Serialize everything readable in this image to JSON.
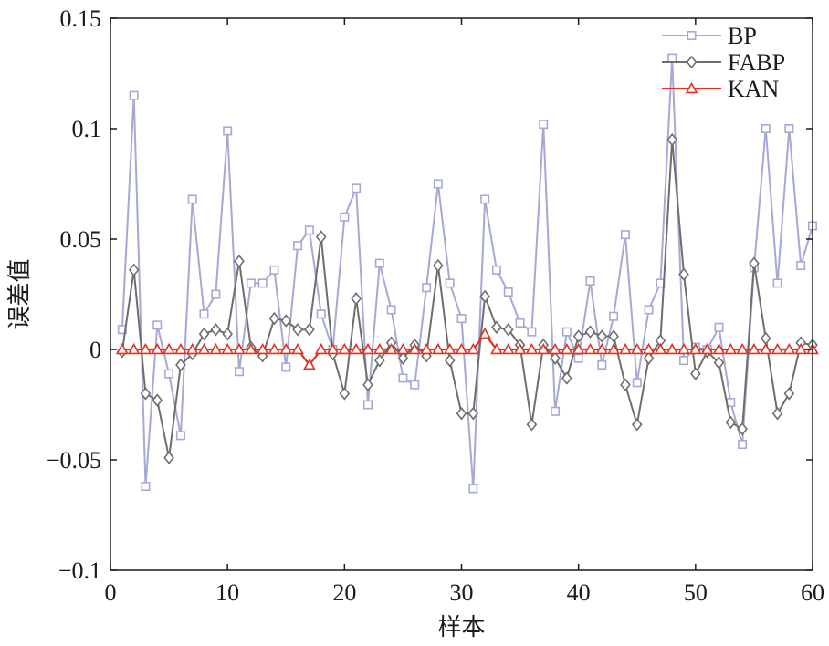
{
  "chart_data": {
    "type": "line",
    "xlabel": "样本",
    "ylabel": "误差值",
    "xlim": [
      0,
      60
    ],
    "ylim": [
      -0.1,
      0.15
    ],
    "x_ticks": [
      0,
      10,
      20,
      30,
      40,
      50,
      60
    ],
    "x_tick_labels": [
      "0",
      "10",
      "20",
      "30",
      "40",
      "50",
      "60"
    ],
    "y_ticks": [
      -0.1,
      -0.05,
      0,
      0.05,
      0.1,
      0.15
    ],
    "y_tick_labels": [
      "−0.1",
      "−0.05",
      "0",
      "0.05",
      "0.1",
      "0.15"
    ],
    "grid": false,
    "legend_position": "top-right",
    "x": [
      1,
      2,
      3,
      4,
      5,
      6,
      7,
      8,
      9,
      10,
      11,
      12,
      13,
      14,
      15,
      16,
      17,
      18,
      19,
      20,
      21,
      22,
      23,
      24,
      25,
      26,
      27,
      28,
      29,
      30,
      31,
      32,
      33,
      34,
      35,
      36,
      37,
      38,
      39,
      40,
      41,
      42,
      43,
      44,
      45,
      46,
      47,
      48,
      49,
      50,
      51,
      52,
      53,
      54,
      55,
      56,
      57,
      58,
      59,
      60
    ],
    "series": [
      {
        "name": "BP",
        "color": "#a6a8d6",
        "marker": "square",
        "values": [
          0.009,
          0.115,
          -0.062,
          0.011,
          -0.011,
          -0.039,
          0.068,
          0.016,
          0.025,
          0.099,
          -0.01,
          0.03,
          0.03,
          0.036,
          -0.008,
          0.047,
          0.054,
          0.016,
          0.0,
          0.06,
          0.073,
          -0.025,
          0.039,
          0.018,
          -0.013,
          -0.016,
          0.028,
          0.075,
          0.03,
          0.014,
          -0.063,
          0.068,
          0.036,
          0.026,
          0.012,
          0.008,
          0.102,
          -0.028,
          0.008,
          -0.004,
          0.031,
          -0.007,
          0.015,
          0.052,
          -0.015,
          0.018,
          0.03,
          0.132,
          -0.005,
          0.001,
          0.0,
          0.01,
          -0.024,
          -0.043,
          0.037,
          0.1,
          0.03,
          0.1,
          0.038,
          0.056
        ]
      },
      {
        "name": "FABP",
        "color": "#6e6e6e",
        "marker": "diamond",
        "values": [
          -0.001,
          0.036,
          -0.02,
          -0.023,
          -0.049,
          -0.007,
          -0.002,
          0.007,
          0.009,
          0.007,
          0.04,
          0.001,
          -0.003,
          0.014,
          0.013,
          0.009,
          0.009,
          0.051,
          -0.002,
          -0.02,
          0.023,
          -0.016,
          -0.005,
          0.003,
          -0.004,
          0.002,
          -0.003,
          0.038,
          -0.005,
          -0.029,
          -0.029,
          0.024,
          0.01,
          0.009,
          0.002,
          -0.034,
          0.002,
          -0.004,
          -0.013,
          0.006,
          0.008,
          0.006,
          0.006,
          -0.016,
          -0.034,
          -0.004,
          0.004,
          0.095,
          0.034,
          -0.011,
          -0.001,
          -0.006,
          -0.033,
          -0.036,
          0.039,
          0.005,
          -0.029,
          -0.02,
          0.003,
          0.002
        ]
      },
      {
        "name": "KAN",
        "color": "#e0321e",
        "marker": "triangle",
        "values": [
          0,
          0,
          0,
          0,
          0,
          0,
          0,
          0,
          0,
          0,
          0,
          0,
          0,
          0,
          0,
          0,
          -0.007,
          0,
          0,
          0,
          0,
          0,
          0,
          0,
          0,
          0,
          0,
          0,
          0,
          0,
          0,
          0.007,
          0,
          0,
          0,
          0,
          0,
          0,
          0,
          0,
          0,
          0,
          0,
          0,
          0,
          0,
          0,
          0,
          0,
          0,
          0,
          0,
          0,
          0,
          0,
          0,
          0,
          0,
          0,
          0
        ]
      }
    ]
  }
}
